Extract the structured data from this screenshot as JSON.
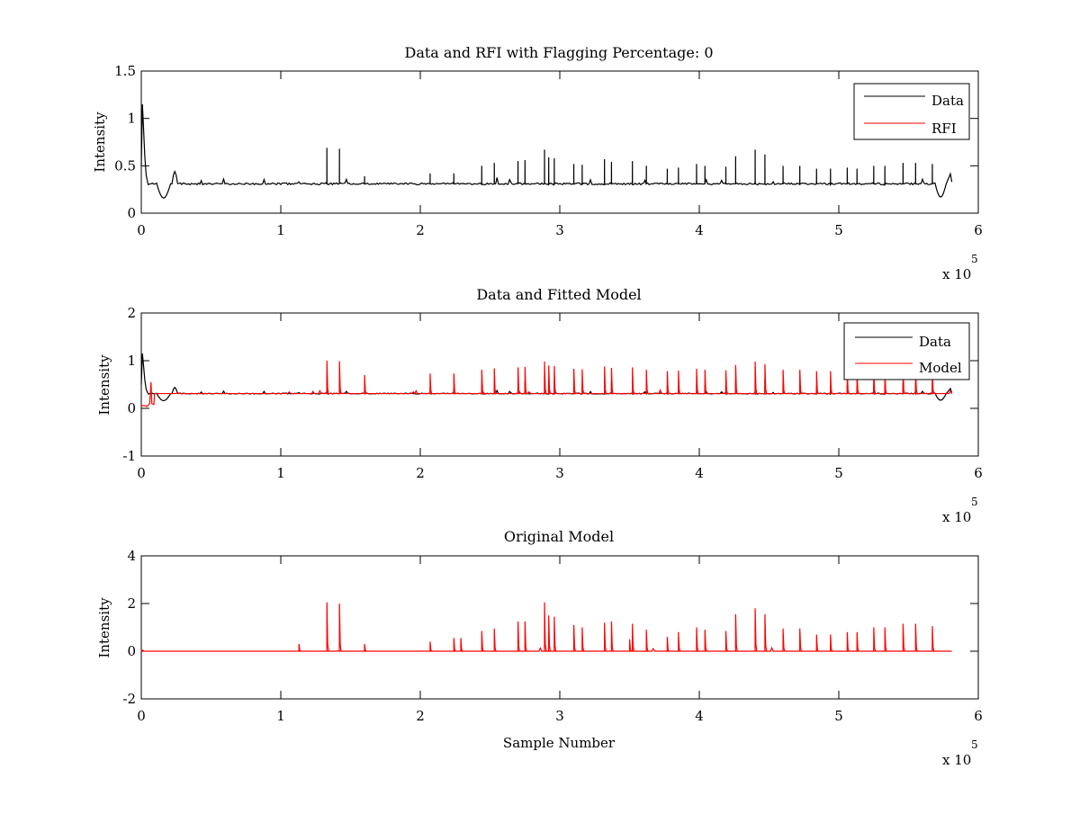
{
  "figure": {
    "background": "#ffffff"
  },
  "chart_data": [
    {
      "type": "line",
      "title": "Data and RFI with Flagging Percentage: 0",
      "xlabel": "",
      "ylabel": "Intensity",
      "xlim": [
        0,
        600000
      ],
      "ylim": [
        0,
        1.5
      ],
      "xticks": [
        0,
        1,
        2,
        3,
        4,
        5,
        6
      ],
      "yticks": [
        0,
        0.5,
        1,
        1.5
      ],
      "xtick_labels": [
        "0",
        "1",
        "2",
        "3",
        "4",
        "5",
        "6"
      ],
      "ytick_labels": [
        "0",
        "0.5",
        "1",
        "1.5"
      ],
      "x_multiplier_text": "x 10",
      "x_multiplier_exponent": "5",
      "legend_position": "top-right",
      "grid": false,
      "series": [
        {
          "name": "Data",
          "color": "#000000",
          "baseline": 0.31,
          "features": "spike_to_1.15_at_start_dip_to_0.16_near_15000_bump_0.44_near_24000_dip_0.16_near_573000_end_0.45",
          "spikes": [
            {
              "x": 133000,
              "y": 0.69
            },
            {
              "x": 142000,
              "y": 0.68
            },
            {
              "x": 160000,
              "y": 0.39
            },
            {
              "x": 207000,
              "y": 0.42
            },
            {
              "x": 224000,
              "y": 0.42
            },
            {
              "x": 244000,
              "y": 0.5
            },
            {
              "x": 253000,
              "y": 0.53
            },
            {
              "x": 270000,
              "y": 0.55
            },
            {
              "x": 275000,
              "y": 0.56
            },
            {
              "x": 289000,
              "y": 0.67
            },
            {
              "x": 292000,
              "y": 0.59
            },
            {
              "x": 296000,
              "y": 0.58
            },
            {
              "x": 310000,
              "y": 0.52
            },
            {
              "x": 316000,
              "y": 0.51
            },
            {
              "x": 332000,
              "y": 0.57
            },
            {
              "x": 337000,
              "y": 0.54
            },
            {
              "x": 352000,
              "y": 0.55
            },
            {
              "x": 362000,
              "y": 0.5
            },
            {
              "x": 377000,
              "y": 0.47
            },
            {
              "x": 385000,
              "y": 0.48
            },
            {
              "x": 398000,
              "y": 0.52
            },
            {
              "x": 404000,
              "y": 0.5
            },
            {
              "x": 419000,
              "y": 0.49
            },
            {
              "x": 426000,
              "y": 0.6
            },
            {
              "x": 440000,
              "y": 0.67
            },
            {
              "x": 447000,
              "y": 0.62
            },
            {
              "x": 460000,
              "y": 0.5
            },
            {
              "x": 472000,
              "y": 0.5
            },
            {
              "x": 484000,
              "y": 0.47
            },
            {
              "x": 494000,
              "y": 0.47
            },
            {
              "x": 506000,
              "y": 0.48
            },
            {
              "x": 513000,
              "y": 0.47
            },
            {
              "x": 525000,
              "y": 0.5
            },
            {
              "x": 533000,
              "y": 0.5
            },
            {
              "x": 546000,
              "y": 0.53
            },
            {
              "x": 555000,
              "y": 0.53
            },
            {
              "x": 567000,
              "y": 0.52
            }
          ]
        },
        {
          "name": "RFI",
          "color": "#ff0000",
          "note": "no visible RFI trace"
        }
      ]
    },
    {
      "type": "line",
      "title": "Data and Fitted Model",
      "xlabel": "",
      "ylabel": "Intensity",
      "xlim": [
        0,
        600000
      ],
      "ylim": [
        -1,
        2
      ],
      "xticks": [
        0,
        1,
        2,
        3,
        4,
        5,
        6
      ],
      "yticks": [
        -1,
        0,
        1,
        2
      ],
      "xtick_labels": [
        "0",
        "1",
        "2",
        "3",
        "4",
        "5",
        "6"
      ],
      "ytick_labels": [
        "-1",
        "0",
        "1",
        "2"
      ],
      "x_multiplier_text": "x 10",
      "x_multiplier_exponent": "5",
      "legend_position": "top-right",
      "grid": false,
      "series": [
        {
          "name": "Data",
          "color": "#000000",
          "baseline": 0.31
        },
        {
          "name": "Model",
          "color": "#ff0000",
          "baseline": 0.31,
          "note": "model near 0.05 for first ~10000 samples with spike to 0.55"
        }
      ]
    },
    {
      "type": "line",
      "title": "Original Model",
      "xlabel": "Sample Number",
      "ylabel": "Intensity",
      "xlim": [
        0,
        600000
      ],
      "ylim": [
        -2,
        4
      ],
      "xticks": [
        0,
        1,
        2,
        3,
        4,
        5,
        6
      ],
      "yticks": [
        -2,
        0,
        2,
        4
      ],
      "xtick_labels": [
        "0",
        "1",
        "2",
        "3",
        "4",
        "5",
        "6"
      ],
      "ytick_labels": [
        "-2",
        "0",
        "2",
        "4"
      ],
      "x_multiplier_text": "x 10",
      "x_multiplier_exponent": "5",
      "grid": false,
      "series": [
        {
          "name": "Original Model",
          "color": "#ff0000",
          "baseline": 0.0,
          "spikes": [
            {
              "x": 113000,
              "y": 0.3
            },
            {
              "x": 133000,
              "y": 2.05
            },
            {
              "x": 142000,
              "y": 2.0
            },
            {
              "x": 160000,
              "y": 0.3
            },
            {
              "x": 207000,
              "y": 0.4
            },
            {
              "x": 224000,
              "y": 0.55
            },
            {
              "x": 229000,
              "y": 0.55
            },
            {
              "x": 244000,
              "y": 0.85
            },
            {
              "x": 253000,
              "y": 0.95
            },
            {
              "x": 270000,
              "y": 1.25
            },
            {
              "x": 275000,
              "y": 1.25
            },
            {
              "x": 289000,
              "y": 2.05
            },
            {
              "x": 292000,
              "y": 1.5
            },
            {
              "x": 296000,
              "y": 1.45
            },
            {
              "x": 310000,
              "y": 1.1
            },
            {
              "x": 316000,
              "y": 1.0
            },
            {
              "x": 332000,
              "y": 1.2
            },
            {
              "x": 337000,
              "y": 1.25
            },
            {
              "x": 350000,
              "y": 0.5
            },
            {
              "x": 352000,
              "y": 1.15
            },
            {
              "x": 362000,
              "y": 0.9
            },
            {
              "x": 377000,
              "y": 0.6
            },
            {
              "x": 385000,
              "y": 0.8
            },
            {
              "x": 398000,
              "y": 1.0
            },
            {
              "x": 404000,
              "y": 0.9
            },
            {
              "x": 419000,
              "y": 0.85
            },
            {
              "x": 426000,
              "y": 1.55
            },
            {
              "x": 440000,
              "y": 1.8
            },
            {
              "x": 447000,
              "y": 1.55
            },
            {
              "x": 460000,
              "y": 0.95
            },
            {
              "x": 472000,
              "y": 0.95
            },
            {
              "x": 484000,
              "y": 0.7
            },
            {
              "x": 494000,
              "y": 0.7
            },
            {
              "x": 506000,
              "y": 0.8
            },
            {
              "x": 513000,
              "y": 0.8
            },
            {
              "x": 525000,
              "y": 1.0
            },
            {
              "x": 533000,
              "y": 1.0
            },
            {
              "x": 546000,
              "y": 1.15
            },
            {
              "x": 555000,
              "y": 1.15
            },
            {
              "x": 567000,
              "y": 1.05
            }
          ]
        }
      ]
    }
  ]
}
